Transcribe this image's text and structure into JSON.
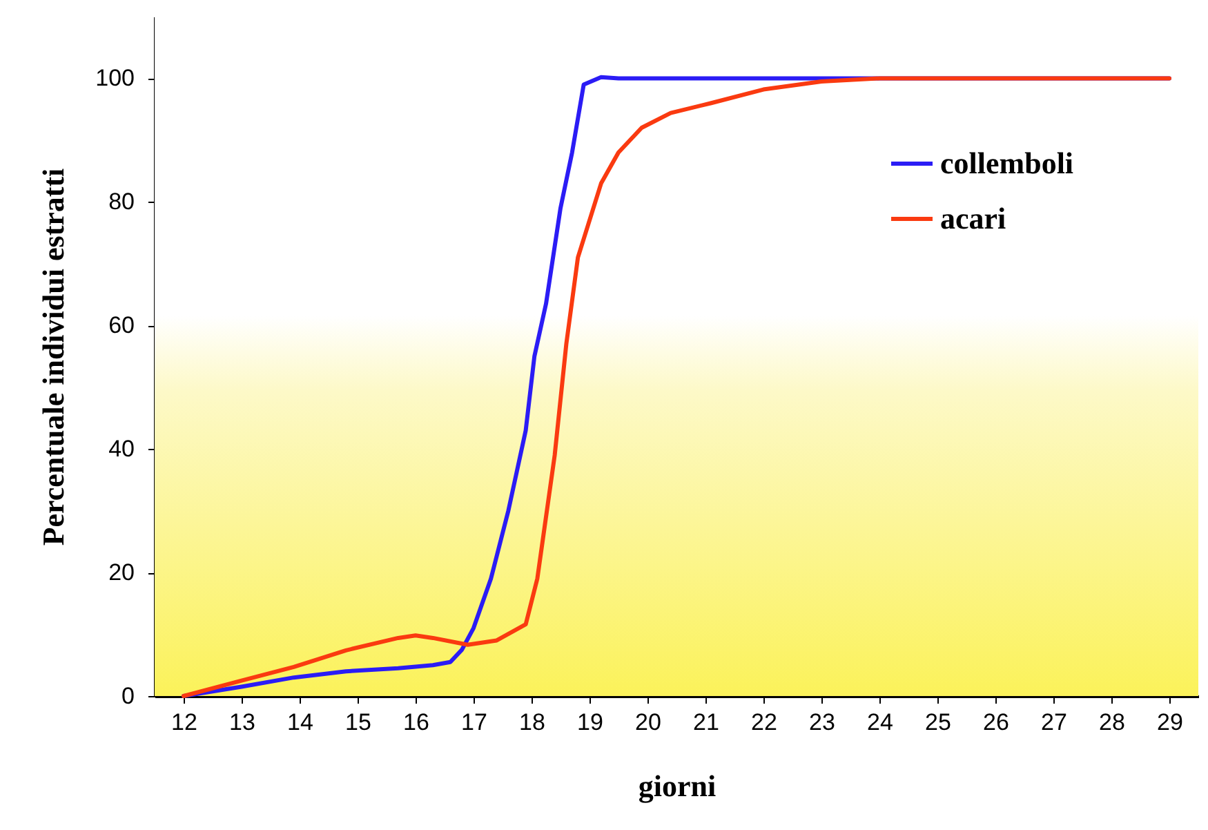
{
  "chart_data": {
    "type": "line",
    "xlabel": "giorni",
    "ylabel": "Percentuale individui estratti",
    "x": [
      12,
      13,
      13.9,
      14.8,
      15.7,
      16.3,
      16.6,
      16.8,
      17,
      17.3,
      17.6,
      17.9,
      18.05,
      18.25,
      18.5,
      18.7,
      18.9,
      19.2,
      19.5,
      29
    ],
    "series": [
      {
        "name": "collemboli",
        "color": "#2b1cf5",
        "values": [
          0,
          1.5,
          3,
          4,
          4.5,
          5,
          5.5,
          7.5,
          11,
          19,
          30,
          43,
          55,
          63.5,
          79,
          88,
          99,
          100.2,
          100,
          100
        ]
      },
      {
        "name": "acari",
        "color": "#fa3a10",
        "x": [
          12,
          13,
          13.9,
          14.8,
          15.7,
          16,
          16.3,
          16.9,
          17.4,
          17.9,
          18.1,
          18.4,
          18.6,
          18.8,
          19.2,
          19.5,
          19.9,
          20.4,
          21.1,
          22,
          23,
          24,
          29
        ],
        "values": [
          0,
          2.5,
          4.7,
          7.4,
          9.4,
          9.8,
          9.4,
          8.3,
          9,
          11.6,
          19,
          39,
          57,
          71,
          83,
          88,
          92,
          94.4,
          96,
          98.2,
          99.5,
          100,
          100
        ]
      }
    ],
    "xlim": [
      11.5,
      29.5
    ],
    "xticks": [
      12,
      13,
      14,
      15,
      16,
      17,
      18,
      19,
      20,
      21,
      22,
      23,
      24,
      25,
      26,
      27,
      28,
      29
    ],
    "ylim": [
      0,
      110
    ],
    "yticks": [
      0,
      20,
      40,
      60,
      80,
      100
    ],
    "grid": false,
    "legend": "top right",
    "marker": "none",
    "line_style": "solid"
  }
}
